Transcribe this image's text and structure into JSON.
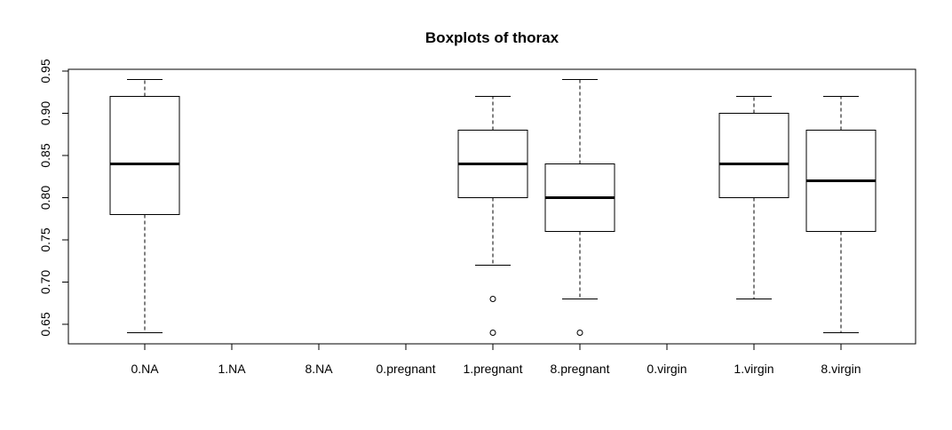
{
  "chart_data": {
    "type": "boxplot",
    "title": "Boxplots of thorax",
    "xlabel": "",
    "ylabel": "",
    "ylim": [
      0.625,
      0.955
    ],
    "y_ticks": [
      0.65,
      0.7,
      0.75,
      0.8,
      0.85,
      0.9,
      0.95
    ],
    "y_tick_labels": [
      "0.65",
      "0.70",
      "0.75",
      "0.80",
      "0.85",
      "0.90",
      "0.95"
    ],
    "categories": [
      "0.NA",
      "1.NA",
      "8.NA",
      "0.pregnant",
      "1.pregnant",
      "8.pregnant",
      "0.virgin",
      "1.virgin",
      "8.virgin"
    ],
    "boxes": [
      {
        "category": "0.NA",
        "whisker_low": 0.64,
        "q1": 0.78,
        "median": 0.84,
        "q3": 0.92,
        "whisker_high": 0.94,
        "outliers": []
      },
      {
        "category": "1.NA",
        "empty": true
      },
      {
        "category": "8.NA",
        "empty": true
      },
      {
        "category": "0.pregnant",
        "empty": true
      },
      {
        "category": "1.pregnant",
        "whisker_low": 0.72,
        "q1": 0.8,
        "median": 0.84,
        "q3": 0.88,
        "whisker_high": 0.92,
        "outliers": [
          0.68,
          0.64
        ]
      },
      {
        "category": "8.pregnant",
        "whisker_low": 0.68,
        "q1": 0.76,
        "median": 0.8,
        "q3": 0.84,
        "whisker_high": 0.94,
        "outliers": [
          0.64
        ]
      },
      {
        "category": "0.virgin",
        "empty": true
      },
      {
        "category": "1.virgin",
        "whisker_low": 0.68,
        "q1": 0.8,
        "median": 0.84,
        "q3": 0.9,
        "whisker_high": 0.92,
        "outliers": []
      },
      {
        "category": "8.virgin",
        "whisker_low": 0.64,
        "q1": 0.76,
        "median": 0.82,
        "q3": 0.88,
        "whisker_high": 0.92,
        "outliers": []
      }
    ],
    "grid": false,
    "legend": "none"
  }
}
